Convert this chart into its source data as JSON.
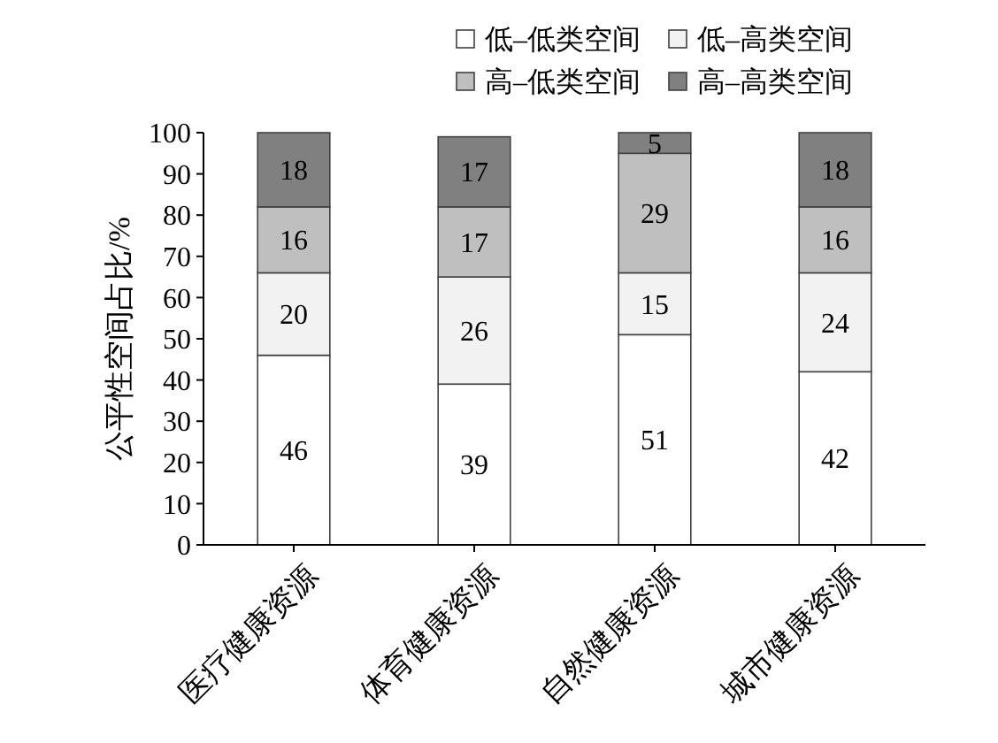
{
  "chart_data": {
    "type": "bar",
    "stacked": true,
    "ylabel": "公平性空间占比/%",
    "categories": [
      "医疗健康资源",
      "体育健康资源",
      "自然健康资源",
      "城市健康资源"
    ],
    "series": [
      {
        "name": "低–低类空间",
        "color": "#ffffff",
        "values": [
          46,
          39,
          51,
          42
        ]
      },
      {
        "name": "低–高类空间",
        "color": "#f2f2f2",
        "values": [
          20,
          26,
          15,
          24
        ]
      },
      {
        "name": "高–低类空间",
        "color": "#bfbfbf",
        "values": [
          16,
          17,
          29,
          16
        ]
      },
      {
        "name": "高–高类空间",
        "color": "#808080",
        "values": [
          18,
          17,
          5,
          18
        ]
      }
    ],
    "ylim": [
      0,
      100
    ],
    "yticks": [
      0,
      10,
      20,
      30,
      40,
      50,
      60,
      70,
      80,
      90,
      100
    ],
    "data_labels": true,
    "legend": "top",
    "grid": false
  }
}
